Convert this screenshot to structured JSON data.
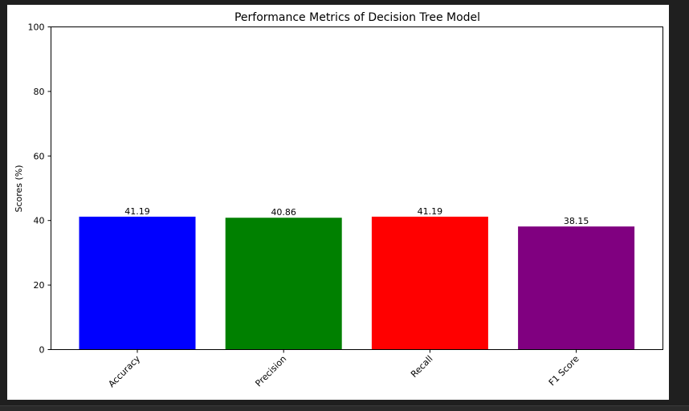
{
  "chart_data": {
    "type": "bar",
    "title": "Performance Metrics of Decision Tree Model",
    "xlabel": "",
    "ylabel": "Scores (%)",
    "ylim": [
      0,
      100
    ],
    "yticks": [
      "0",
      "20",
      "40",
      "60",
      "80",
      "100"
    ],
    "categories": [
      "Accuracy",
      "Precision",
      "Recall",
      "F1 Score"
    ],
    "values": [
      41.19,
      40.86,
      41.19,
      38.15
    ],
    "value_labels": [
      "41.19",
      "40.86",
      "41.19",
      "38.15"
    ],
    "colors": [
      "#0000ff",
      "#008000",
      "#ff0000",
      "#800080"
    ],
    "grid": false,
    "legend": "none"
  }
}
